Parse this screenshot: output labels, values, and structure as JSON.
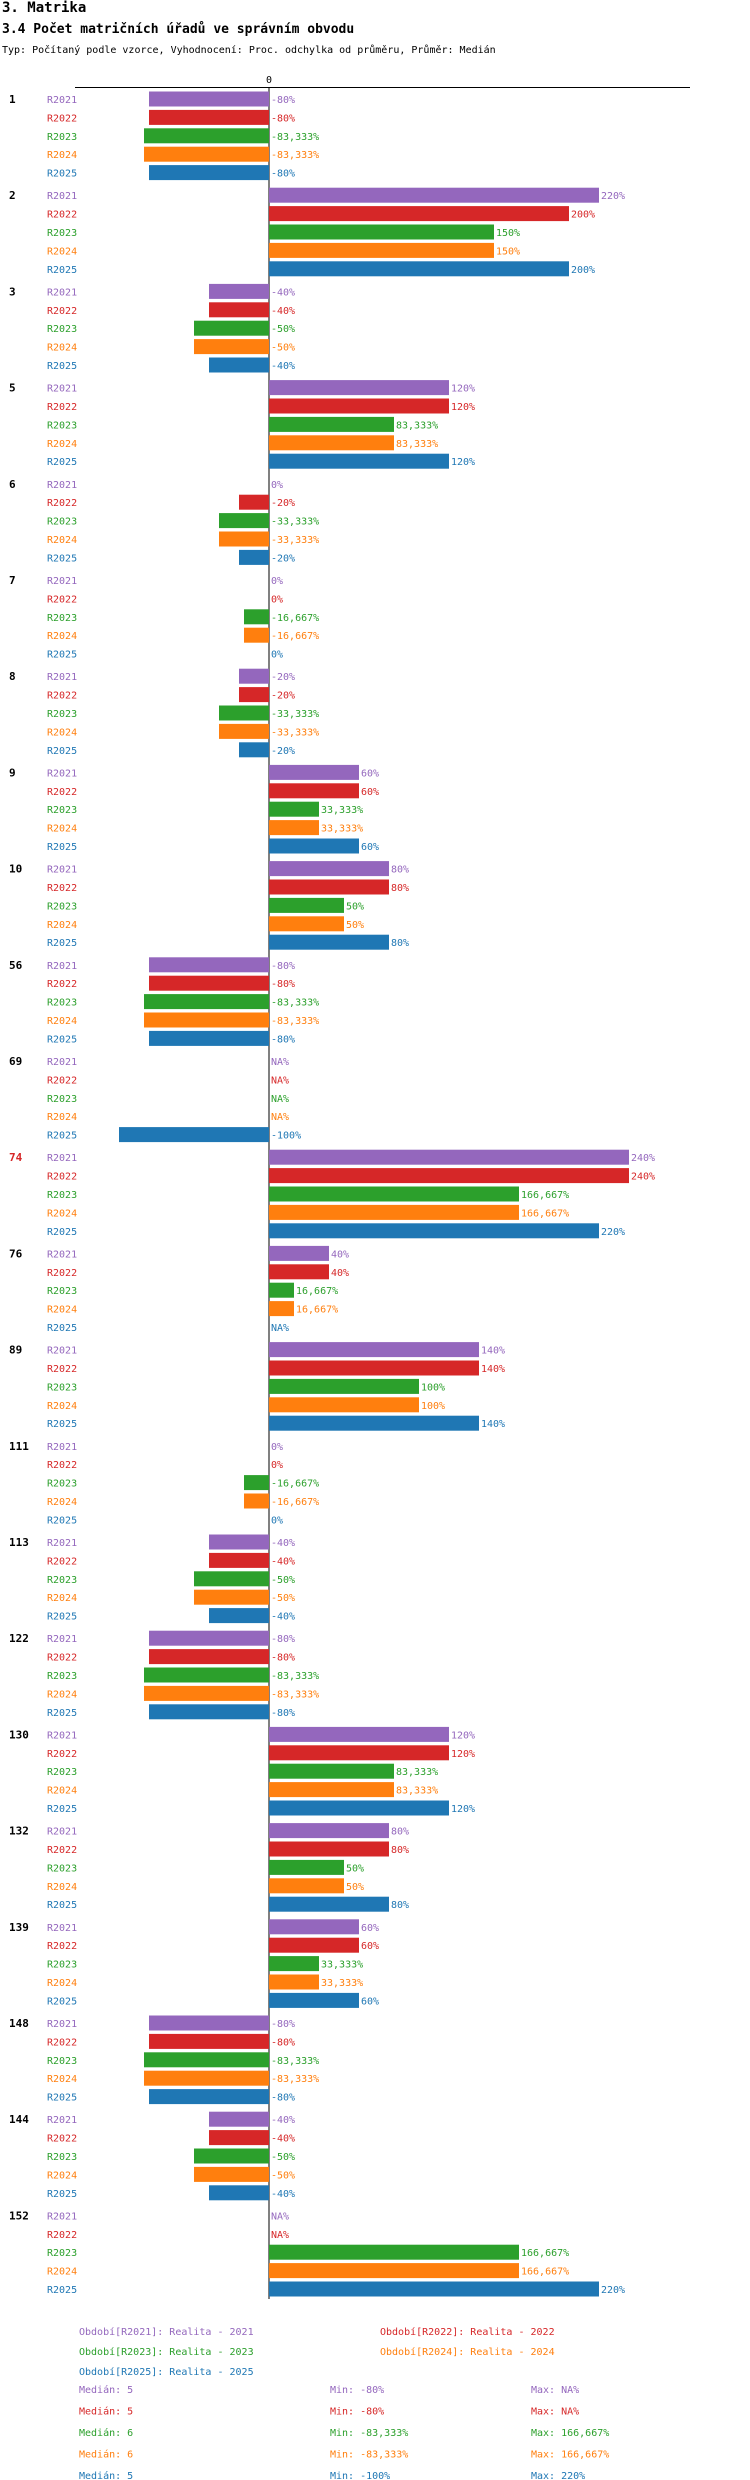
{
  "heading": "3. Matrika",
  "subheading": "3.4 Počet matričních úřadů ve správním obvodu",
  "description": "Typ: Počítaný podle vzorce, Vyhodnocení: Proc. odchylka od průměru, Průměr: Medián",
  "colors": {
    "R2021": "#9467bd",
    "R2022": "#d62728",
    "R2023": "#2ca02c",
    "R2024": "#ff7f0e",
    "R2025": "#1f77b4",
    "highlight": "#d62728"
  },
  "chart_data": {
    "type": "bar",
    "orientation": "horizontal",
    "zero_label": "0",
    "xlim": [
      -100,
      240
    ],
    "series_names": [
      "R2021",
      "R2022",
      "R2023",
      "R2024",
      "R2025"
    ],
    "groups": [
      {
        "id": "1",
        "values": [
          -80,
          -80,
          -83.333,
          -83.333,
          -80
        ],
        "labels": [
          "-80%",
          "-80%",
          "-83,333%",
          "-83,333%",
          "-80%"
        ]
      },
      {
        "id": "2",
        "values": [
          220,
          200,
          150,
          150,
          200
        ],
        "labels": [
          "220%",
          "200%",
          "150%",
          "150%",
          "200%"
        ]
      },
      {
        "id": "3",
        "values": [
          -40,
          -40,
          -50,
          -50,
          -40
        ],
        "labels": [
          "-40%",
          "-40%",
          "-50%",
          "-50%",
          "-40%"
        ]
      },
      {
        "id": "5",
        "values": [
          120,
          120,
          83.333,
          83.333,
          120
        ],
        "labels": [
          "120%",
          "120%",
          "83,333%",
          "83,333%",
          "120%"
        ]
      },
      {
        "id": "6",
        "values": [
          0,
          -20,
          -33.333,
          -33.333,
          -20
        ],
        "labels": [
          "0%",
          "-20%",
          "-33,333%",
          "-33,333%",
          "-20%"
        ]
      },
      {
        "id": "7",
        "values": [
          0,
          0,
          -16.667,
          -16.667,
          0
        ],
        "labels": [
          "0%",
          "0%",
          "-16,667%",
          "-16,667%",
          "0%"
        ]
      },
      {
        "id": "8",
        "values": [
          -20,
          -20,
          -33.333,
          -33.333,
          -20
        ],
        "labels": [
          "-20%",
          "-20%",
          "-33,333%",
          "-33,333%",
          "-20%"
        ]
      },
      {
        "id": "9",
        "values": [
          60,
          60,
          33.333,
          33.333,
          60
        ],
        "labels": [
          "60%",
          "60%",
          "33,333%",
          "33,333%",
          "60%"
        ]
      },
      {
        "id": "10",
        "values": [
          80,
          80,
          50,
          50,
          80
        ],
        "labels": [
          "80%",
          "80%",
          "50%",
          "50%",
          "80%"
        ]
      },
      {
        "id": "56",
        "values": [
          -80,
          -80,
          -83.333,
          -83.333,
          -80
        ],
        "labels": [
          "-80%",
          "-80%",
          "-83,333%",
          "-83,333%",
          "-80%"
        ]
      },
      {
        "id": "69",
        "values": [
          null,
          null,
          null,
          null,
          -100
        ],
        "labels": [
          "NA%",
          "NA%",
          "NA%",
          "NA%",
          "-100%"
        ]
      },
      {
        "id": "74",
        "highlight": true,
        "values": [
          240,
          240,
          166.667,
          166.667,
          220
        ],
        "labels": [
          "240%",
          "240%",
          "166,667%",
          "166,667%",
          "220%"
        ]
      },
      {
        "id": "76",
        "values": [
          40,
          40,
          16.667,
          16.667,
          null
        ],
        "labels": [
          "40%",
          "40%",
          "16,667%",
          "16,667%",
          "NA%"
        ]
      },
      {
        "id": "89",
        "values": [
          140,
          140,
          100,
          100,
          140
        ],
        "labels": [
          "140%",
          "140%",
          "100%",
          "100%",
          "140%"
        ]
      },
      {
        "id": "111",
        "values": [
          0,
          0,
          -16.667,
          -16.667,
          0
        ],
        "labels": [
          "0%",
          "0%",
          "-16,667%",
          "-16,667%",
          "0%"
        ]
      },
      {
        "id": "113",
        "values": [
          -40,
          -40,
          -50,
          -50,
          -40
        ],
        "labels": [
          "-40%",
          "-40%",
          "-50%",
          "-50%",
          "-40%"
        ]
      },
      {
        "id": "122",
        "values": [
          -80,
          -80,
          -83.333,
          -83.333,
          -80
        ],
        "labels": [
          "-80%",
          "-80%",
          "-83,333%",
          "-83,333%",
          "-80%"
        ]
      },
      {
        "id": "130",
        "values": [
          120,
          120,
          83.333,
          83.333,
          120
        ],
        "labels": [
          "120%",
          "120%",
          "83,333%",
          "83,333%",
          "120%"
        ]
      },
      {
        "id": "132",
        "values": [
          80,
          80,
          50,
          50,
          80
        ],
        "labels": [
          "80%",
          "80%",
          "50%",
          "50%",
          "80%"
        ]
      },
      {
        "id": "139",
        "values": [
          60,
          60,
          33.333,
          33.333,
          60
        ],
        "labels": [
          "60%",
          "60%",
          "33,333%",
          "33,333%",
          "60%"
        ]
      },
      {
        "id": "148",
        "values": [
          -80,
          -80,
          -83.333,
          -83.333,
          -80
        ],
        "labels": [
          "-80%",
          "-80%",
          "-83,333%",
          "-83,333%",
          "-80%"
        ]
      },
      {
        "id": "144",
        "values": [
          -40,
          -40,
          -50,
          -50,
          -40
        ],
        "labels": [
          "-40%",
          "-40%",
          "-50%",
          "-50%",
          "-40%"
        ]
      },
      {
        "id": "152",
        "values": [
          null,
          null,
          166.667,
          166.667,
          220
        ],
        "labels": [
          "NA%",
          "NA%",
          "166,667%",
          "166,667%",
          "220%"
        ]
      }
    ],
    "legend": [
      {
        "series": "R2021",
        "text": "Období[R2021]: Realita - 2021"
      },
      {
        "series": "R2022",
        "text": "Období[R2022]: Realita - 2022"
      },
      {
        "series": "R2023",
        "text": "Období[R2023]: Realita - 2023"
      },
      {
        "series": "R2024",
        "text": "Období[R2024]: Realita - 2024"
      },
      {
        "series": "R2025",
        "text": "Období[R2025]: Realita - 2025"
      }
    ],
    "stats": [
      {
        "series": "R2021",
        "median": "Medián: 5",
        "min": "Min: -80%",
        "max": "Max: NA%"
      },
      {
        "series": "R2022",
        "median": "Medián: 5",
        "min": "Min: -80%",
        "max": "Max: NA%"
      },
      {
        "series": "R2023",
        "median": "Medián: 6",
        "min": "Min: -83,333%",
        "max": "Max: 166,667%"
      },
      {
        "series": "R2024",
        "median": "Medián: 6",
        "min": "Min: -83,333%",
        "max": "Max: 166,667%"
      },
      {
        "series": "R2025",
        "median": "Medián: 5",
        "min": "Min: -100%",
        "max": "Max: 220%"
      }
    ]
  }
}
